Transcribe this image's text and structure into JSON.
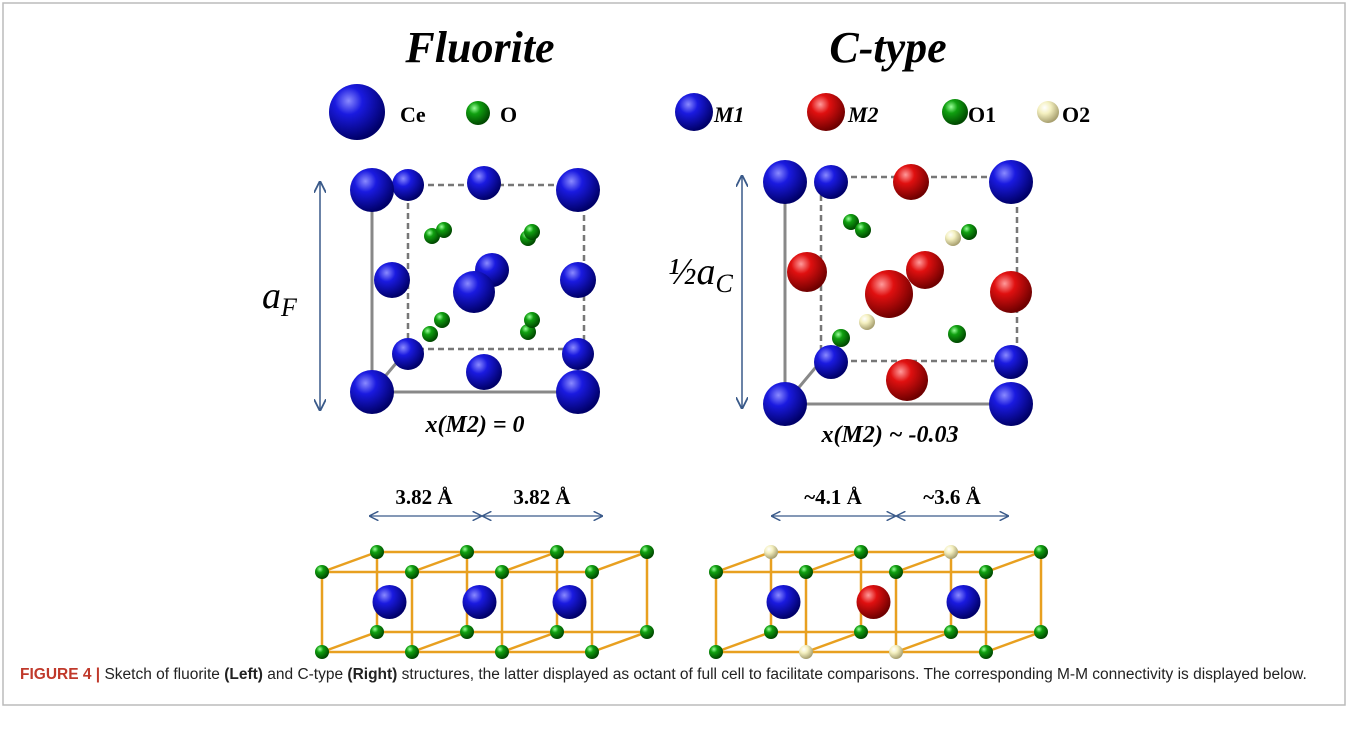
{
  "panels": [
    {
      "title": "Fluorite",
      "legend": [
        "Ce",
        "O"
      ],
      "lattice_label": {
        "base": "a",
        "sub": "F"
      },
      "formula": "x(M2) = 0",
      "distances": [
        "3.82 Å",
        "3.82 Å"
      ]
    },
    {
      "title": "C-type",
      "legend": [
        "M1",
        "M2",
        "O1",
        "O2"
      ],
      "lattice_label": {
        "base": "½a",
        "sub": "C"
      },
      "formula": "x(M2) ~ -0.03",
      "distances": [
        "~4.1 Å",
        "~3.6 Å"
      ]
    }
  ],
  "caption": {
    "label": "FIGURE 4 |",
    "parts": [
      "Sketch of fluorite",
      "(Left)",
      "and C-type",
      "(Right)",
      "structures, the latter displayed as octant of full cell to facilitate comparisons. The corresponding M-M connectivity is displayed below."
    ]
  }
}
